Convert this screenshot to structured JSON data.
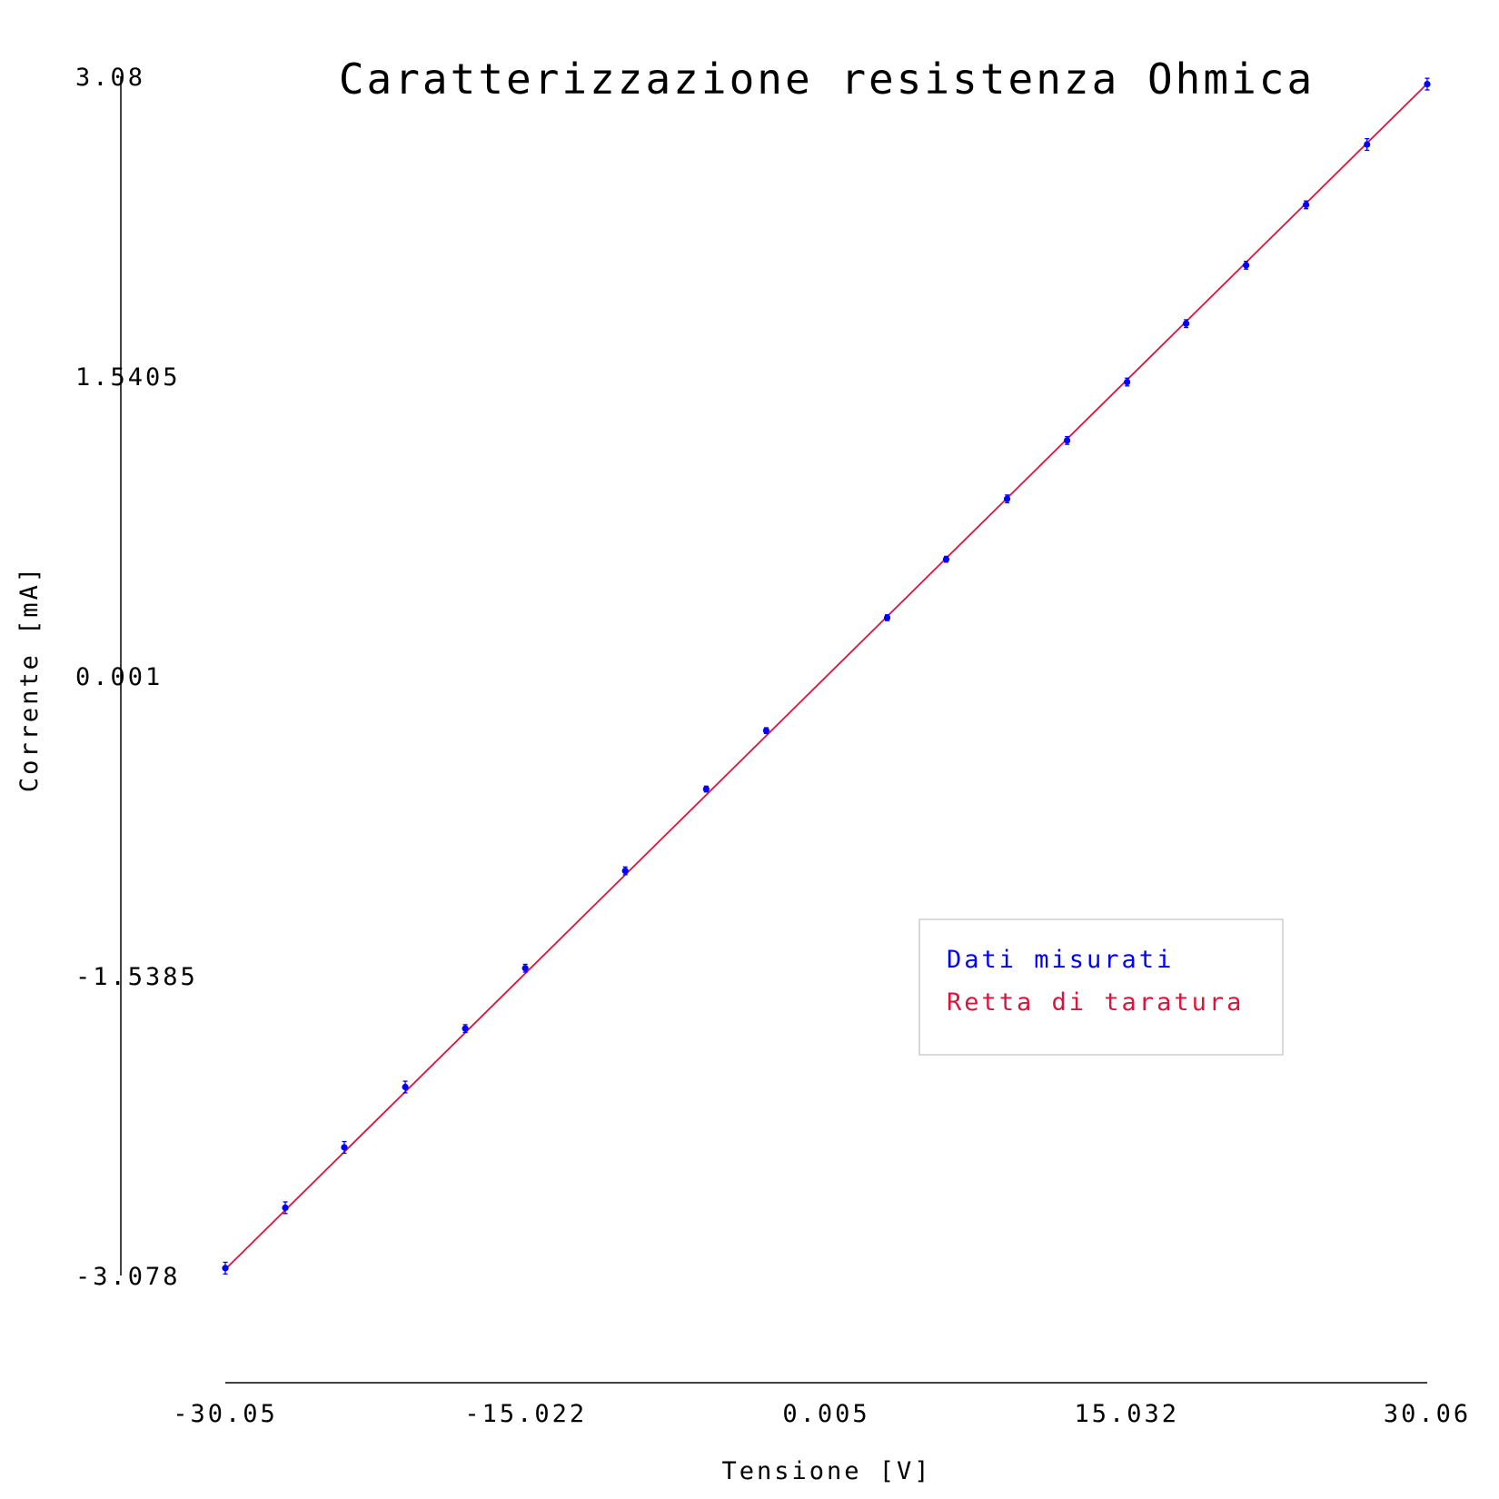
{
  "chart_data": {
    "type": "scatter",
    "title": "Caratterizzazione resistenza Ohmica",
    "xlabel": "Tensione [V]",
    "ylabel": "Corrente [mA]",
    "xlim": [
      -30.05,
      30.06
    ],
    "ylim": [
      -3.078,
      3.08
    ],
    "x_ticks": [
      "-30.05",
      "-15.022",
      "0.005",
      "15.032",
      "30.06"
    ],
    "y_ticks": [
      "-3.078",
      "-1.5385",
      "0.001",
      "1.5405",
      "3.08"
    ],
    "grid": false,
    "legend_position": "lower-right",
    "series": [
      {
        "name": "Dati misurati",
        "kind": "points-with-errorbars",
        "color": "#0000ff",
        "x": [
          -30.05,
          -27.05,
          -24.1,
          -21.05,
          -18.05,
          -15.05,
          -10.05,
          -6.0,
          -3.0,
          3.05,
          6.0,
          9.05,
          12.05,
          15.05,
          18.0,
          21.0,
          24.0,
          27.05,
          30.06
        ],
        "y": [
          -3.04,
          -2.73,
          -2.42,
          -2.11,
          -1.81,
          -1.5,
          -1.0,
          -0.58,
          -0.28,
          0.3,
          0.6,
          0.91,
          1.21,
          1.51,
          1.81,
          2.11,
          2.42,
          2.73,
          3.04
        ],
        "yerr": [
          0.03,
          0.03,
          0.03,
          0.03,
          0.02,
          0.02,
          0.02,
          0.015,
          0.015,
          0.015,
          0.015,
          0.02,
          0.02,
          0.02,
          0.02,
          0.02,
          0.02,
          0.03,
          0.03
        ]
      },
      {
        "name": "Retta di taratura",
        "kind": "line",
        "color": "#dc143c",
        "x": [
          -30.05,
          30.06
        ],
        "y": [
          -3.046,
          3.042
        ]
      }
    ]
  }
}
